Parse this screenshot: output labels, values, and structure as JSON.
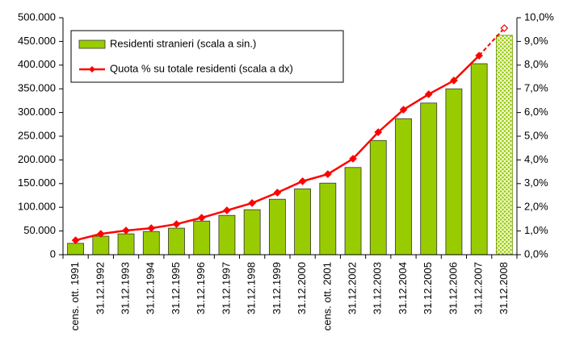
{
  "chart_data": {
    "type": "bar",
    "categories": [
      "cens. ott. 1991",
      "31.12.1992",
      "31.12.1993",
      "31.12.1994",
      "31.12.1995",
      "31.12.1996",
      "31.12.1997",
      "31.12.1998",
      "31.12.1999",
      "31.12.2000",
      "cens. ott. 2001",
      "31.12.2002",
      "31.12.2003",
      "31.12.2004",
      "31.12.2005",
      "31.12.2006",
      "31.12.2007",
      "31.12.2008"
    ],
    "series": [
      {
        "name": "Residenti stranieri (scala a sin.)",
        "type": "bar",
        "color": "#99cc00",
        "values": [
          24000,
          39000,
          44000,
          49000,
          56000,
          71000,
          83000,
          95000,
          117000,
          139000,
          151000,
          184000,
          241000,
          287000,
          320000,
          350000,
          403000,
          463000
        ]
      },
      {
        "name": "Quota % su totale residenti (scala a dx)",
        "type": "line",
        "axis": "y2",
        "color": "#ff0000",
        "values": [
          0.61,
          0.88,
          1.02,
          1.12,
          1.29,
          1.56,
          1.87,
          2.18,
          2.62,
          3.1,
          3.4,
          4.05,
          5.17,
          6.12,
          6.77,
          7.35,
          8.4,
          9.56
        ]
      }
    ],
    "ylim": [
      0,
      500000
    ],
    "yticks": [
      0,
      {
        "value": 50000,
        "label": "50.000"
      },
      {
        "value": 100000,
        "label": "100.000"
      },
      {
        "value": 150000,
        "label": "150.000"
      },
      {
        "value": 200000,
        "label": "200.000"
      },
      {
        "value": 250000,
        "label": "250.000"
      },
      {
        "value": 300000,
        "label": "300.000"
      },
      {
        "value": 350000,
        "label": "350.000"
      },
      {
        "value": 400000,
        "label": "400.000"
      },
      {
        "value": 450000,
        "label": "450.000"
      },
      {
        "value": 500000,
        "label": "500.000"
      }
    ],
    "y2lim": [
      0,
      10
    ],
    "y2ticks": [
      {
        "value": 0,
        "label": "0,0%"
      },
      {
        "value": 1,
        "label": "1,0%"
      },
      {
        "value": 2,
        "label": "2,0%"
      },
      {
        "value": 3,
        "label": "3,0%"
      },
      {
        "value": 4,
        "label": "4,0%"
      },
      {
        "value": 5,
        "label": "5,0%"
      },
      {
        "value": 6,
        "label": "6,0%"
      },
      {
        "value": 7,
        "label": "7,0%"
      },
      {
        "value": 8,
        "label": "8,0%"
      },
      {
        "value": 9,
        "label": "9,0%"
      },
      {
        "value": 10,
        "label": "10,0%"
      }
    ],
    "grid": false,
    "legend": "top-left"
  }
}
